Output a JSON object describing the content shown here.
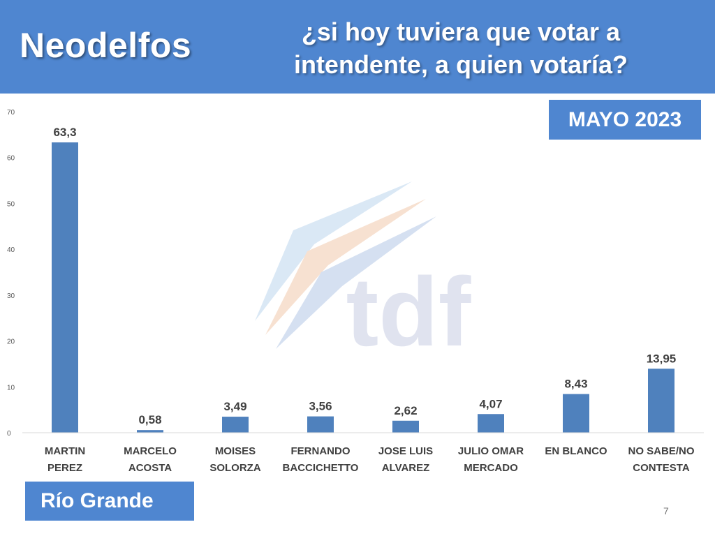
{
  "header": {
    "brand": "Neodelfos",
    "question": "¿si hoy tuviera que votar a intendente, a quien votaría?"
  },
  "date_badge": "MAYO 2023",
  "city_badge": "Río Grande",
  "page_number": "7",
  "watermark": {
    "text": "tdf"
  },
  "colors": {
    "header": "#4f86d0",
    "bar": "#4f81bd"
  },
  "chart_data": {
    "type": "bar",
    "title": "¿si hoy tuviera que votar a intendente, a quien votaría?",
    "categories": [
      [
        "MARTIN",
        "PEREZ"
      ],
      [
        "MARCELO",
        "ACOSTA"
      ],
      [
        "MOISES",
        "SOLORZA"
      ],
      [
        "FERNANDO",
        "BACCICHETTO"
      ],
      [
        "JOSE LUIS",
        "ALVAREZ"
      ],
      [
        "JULIO OMAR",
        "MERCADO"
      ],
      [
        "EN BLANCO"
      ],
      [
        "NO SABE/NO",
        "CONTESTA"
      ]
    ],
    "values": [
      63.3,
      0.58,
      3.49,
      3.56,
      2.62,
      4.07,
      8.43,
      13.95
    ],
    "value_labels": [
      "63,3",
      "0,58",
      "3,49",
      "3,56",
      "2,62",
      "4,07",
      "8,43",
      "13,95"
    ],
    "yticks": [
      0,
      10,
      20,
      30,
      40,
      50,
      60,
      70
    ],
    "ylim": [
      0,
      70
    ],
    "grid": false,
    "legend": false
  }
}
